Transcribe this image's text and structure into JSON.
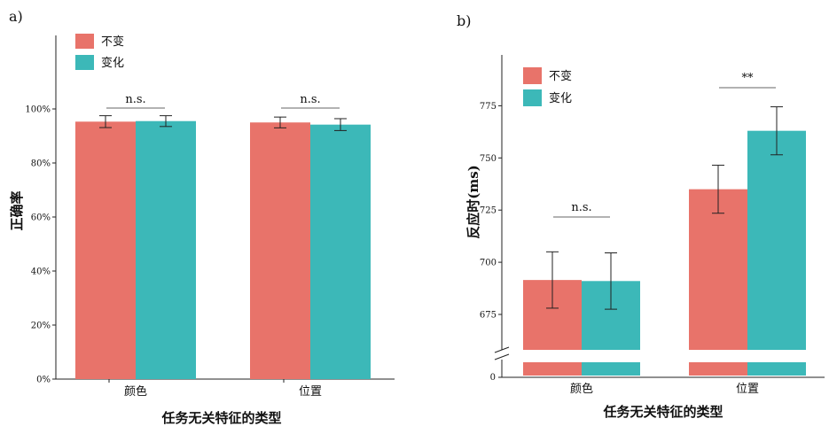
{
  "colors": {
    "unchanged": "#E8736A",
    "changed": "#3CB8B8"
  },
  "chart_data": [
    {
      "panel_label": "a)",
      "type": "bar",
      "xlabel": "任务无关特征的类型",
      "ylabel": "正确率",
      "categories": [
        "颜色",
        "位置"
      ],
      "ylim": [
        0,
        1.0
      ],
      "yticks": [
        0,
        0.2,
        0.4,
        0.6,
        0.8,
        1.0
      ],
      "ytick_labels": [
        "0%",
        "20%",
        "40%",
        "60%",
        "80%",
        "100%"
      ],
      "legend": [
        "不变",
        "变化"
      ],
      "series": [
        {
          "name": "不变",
          "values": [
            0.953,
            0.95
          ],
          "errors": [
            0.022,
            0.02
          ]
        },
        {
          "name": "变化",
          "values": [
            0.955,
            0.942
          ],
          "errors": [
            0.02,
            0.022
          ]
        }
      ],
      "significance": [
        "n.s.",
        "n.s."
      ]
    },
    {
      "panel_label": "b)",
      "type": "bar",
      "xlabel": "任务无关特征的类型",
      "ylabel": "反应时(ms)",
      "categories": [
        "颜色",
        "位置"
      ],
      "ylim": [
        665,
        780
      ],
      "axis_break": true,
      "yticks": [
        675,
        700,
        725,
        750,
        775
      ],
      "ytick_labels": [
        "675",
        "700",
        "725",
        "750",
        "775"
      ],
      "baseline_label": "0",
      "legend": [
        "不变",
        "变化"
      ],
      "series": [
        {
          "name": "不变",
          "values": [
            691.5,
            735
          ],
          "errors": [
            13.5,
            11.5
          ]
        },
        {
          "name": "变化",
          "values": [
            691,
            763
          ],
          "errors": [
            13.5,
            11.5
          ]
        }
      ],
      "significance": [
        "n.s.",
        "**"
      ]
    }
  ]
}
